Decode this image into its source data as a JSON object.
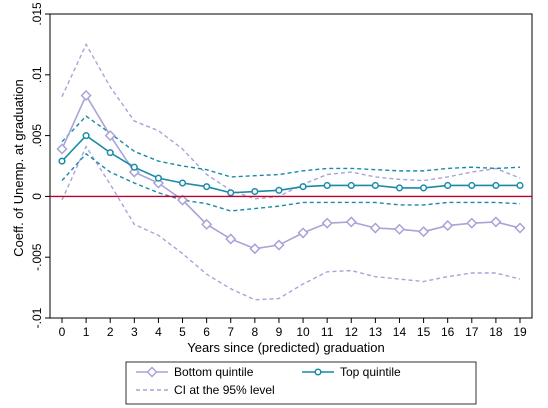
{
  "chart_data": {
    "type": "line",
    "title": "",
    "xlabel": "Years since (predicted) graduation",
    "ylabel": "Coeff. of Unemp. at graduation",
    "x": [
      0,
      1,
      2,
      3,
      4,
      5,
      6,
      7,
      8,
      9,
      10,
      11,
      12,
      13,
      14,
      15,
      16,
      17,
      18,
      19
    ],
    "xlim": [
      0,
      19
    ],
    "ylim": [
      -0.01,
      0.015
    ],
    "y_ticks": [
      -0.01,
      -0.005,
      0,
      0.005,
      0.01,
      0.015
    ],
    "y_tick_labels": [
      "-.01",
      "-.005",
      "0",
      ".005",
      ".01",
      ".015"
    ],
    "x_tick_labels": [
      "0",
      "1",
      "2",
      "3",
      "4",
      "5",
      "6",
      "7",
      "8",
      "9",
      "10",
      "11",
      "12",
      "13",
      "14",
      "15",
      "16",
      "17",
      "18",
      "19"
    ],
    "reference_line": {
      "y": 0,
      "color": "#c0002a"
    },
    "grid": false,
    "legend_position": "bottom",
    "series": [
      {
        "name": "Bottom quintile",
        "color": "#a7a4d8",
        "marker": "diamond",
        "values": [
          0.0039,
          0.0083,
          0.005,
          0.002,
          0.0011,
          -0.0003,
          -0.0023,
          -0.0035,
          -0.0043,
          -0.004,
          -0.003,
          -0.0022,
          -0.0021,
          -0.0026,
          -0.0027,
          -0.0029,
          -0.0024,
          -0.0022,
          -0.0021,
          -0.0026
        ]
      },
      {
        "name": "Top quintile",
        "color": "#1a8aa6",
        "marker": "circle",
        "values": [
          0.0029,
          0.005,
          0.0036,
          0.0024,
          0.0015,
          0.0011,
          0.0008,
          0.0003,
          0.0004,
          0.0005,
          0.0008,
          0.0009,
          0.0009,
          0.0009,
          0.0007,
          0.0007,
          0.0009,
          0.0009,
          0.0009,
          0.0009
        ]
      }
    ],
    "ci_series": [
      {
        "name": "CI at the 95% level",
        "group": "Bottom quintile",
        "color": "#a7a4d8",
        "upper": [
          0.0082,
          0.0125,
          0.009,
          0.0062,
          0.0054,
          0.0039,
          0.0018,
          0.0005,
          -0.0002,
          0.0,
          0.001,
          0.0018,
          0.002,
          0.0016,
          0.0014,
          0.0013,
          0.0016,
          0.002,
          0.0023,
          0.0015
        ],
        "lower": [
          -0.0003,
          0.0041,
          0.001,
          -0.0023,
          -0.0032,
          -0.0047,
          -0.0064,
          -0.0076,
          -0.0085,
          -0.0084,
          -0.0072,
          -0.0062,
          -0.0061,
          -0.0066,
          -0.0068,
          -0.007,
          -0.0066,
          -0.0063,
          -0.0063,
          -0.0068
        ]
      },
      {
        "name": "CI at the 95% level",
        "group": "Top quintile",
        "color": "#1a8aa6",
        "upper": [
          0.0045,
          0.0066,
          0.0052,
          0.0037,
          0.0029,
          0.0025,
          0.0022,
          0.0016,
          0.0017,
          0.0018,
          0.0021,
          0.0023,
          0.0023,
          0.0022,
          0.0021,
          0.0021,
          0.0023,
          0.0024,
          0.0023,
          0.0024
        ],
        "lower": [
          0.0013,
          0.0035,
          0.002,
          0.0011,
          0.0003,
          -0.0003,
          -0.0006,
          -0.0012,
          -0.001,
          -0.0008,
          -0.0005,
          -0.0005,
          -0.0005,
          -0.0005,
          -0.0007,
          -0.0007,
          -0.0005,
          -0.0005,
          -0.0005,
          -0.0006
        ]
      }
    ],
    "legend": [
      {
        "label": "Bottom quintile",
        "color": "#a7a4d8",
        "style": "solid-diamond"
      },
      {
        "label": "Top quintile",
        "color": "#1a8aa6",
        "style": "solid-circle"
      },
      {
        "label": "CI at the 95% level",
        "color": "#a7a4d8",
        "style": "dashed"
      }
    ]
  }
}
